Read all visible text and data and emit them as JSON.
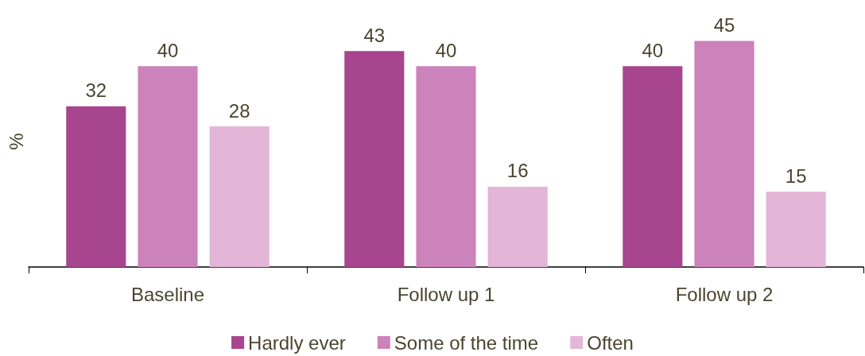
{
  "chart_data": {
    "type": "bar",
    "ylabel": "%",
    "categories": [
      "Baseline",
      "Follow up 1",
      "Follow up 2"
    ],
    "series": [
      {
        "name": "Hardly ever",
        "color": "#a8458f",
        "values": [
          32,
          43,
          40
        ]
      },
      {
        "name": "Some of the time",
        "color": "#cc82bb",
        "values": [
          40,
          40,
          45
        ]
      },
      {
        "name": "Often",
        "color": "#e3b6d8",
        "values": [
          28,
          16,
          15
        ]
      }
    ],
    "data_labels": true,
    "legend": "bottom",
    "grid": false
  }
}
